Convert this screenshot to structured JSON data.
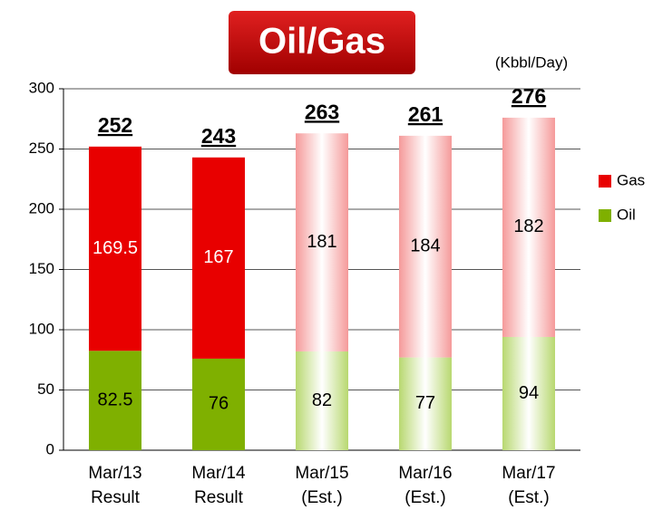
{
  "chart_data": {
    "type": "stacked_bar",
    "title": "Oil/Gas",
    "unit_label": "(Kbbl/Day)",
    "categories": [
      [
        "Mar/13",
        "Result"
      ],
      [
        "Mar/14",
        "Result"
      ],
      [
        "Mar/15",
        "(Est.)"
      ],
      [
        "Mar/16",
        "(Est.)"
      ],
      [
        "Mar/17",
        "(Est.)"
      ]
    ],
    "series": [
      {
        "name": "Oil",
        "color": "#7fb000",
        "colors": [
          "#7fb000",
          "#7fb000",
          "#b8d870",
          "#b8d870",
          "#b8d870"
        ],
        "values": [
          82.5,
          76,
          82,
          77,
          94
        ]
      },
      {
        "name": "Gas",
        "color": "#e80000",
        "colors": [
          "#e80000",
          "#e80000",
          "#f59a9a",
          "#f59a9a",
          "#f59a9a"
        ],
        "values": [
          169.5,
          167,
          181,
          184,
          182
        ]
      }
    ],
    "totals": [
      252,
      243,
      263,
      261,
      276
    ],
    "ylim": [
      0,
      300
    ],
    "yticks": [
      0,
      50,
      100,
      150,
      200,
      250,
      300
    ],
    "grid": true,
    "legend": "right"
  }
}
